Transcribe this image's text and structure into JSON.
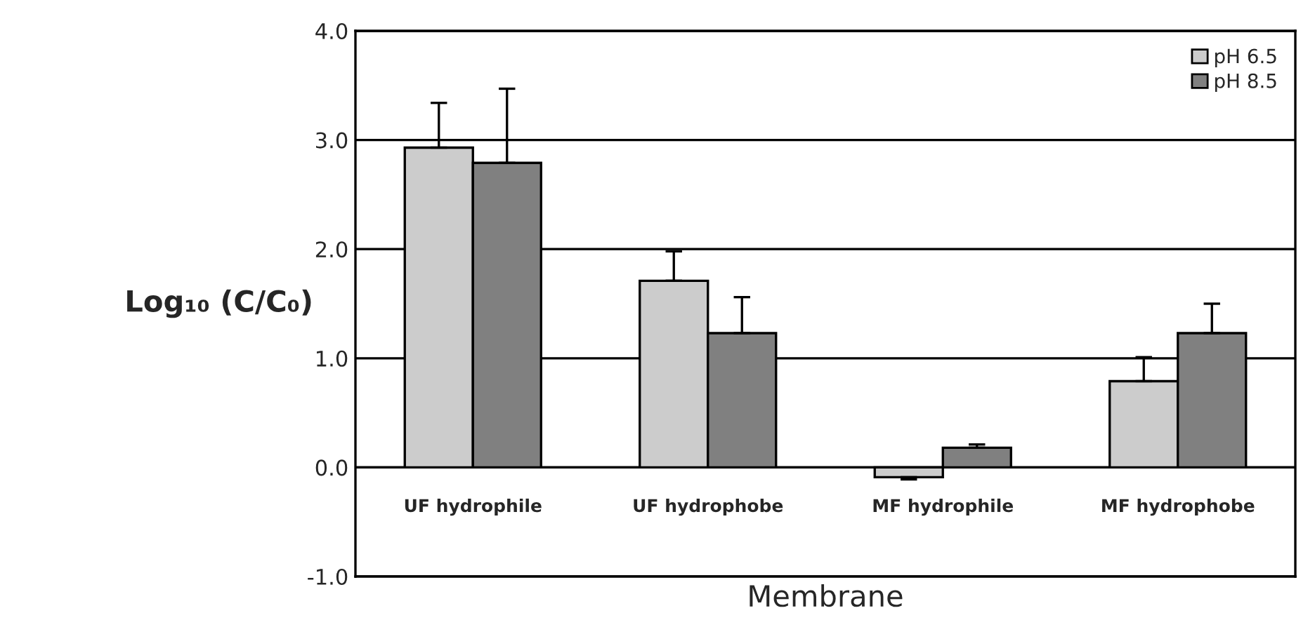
{
  "chart_data": {
    "type": "bar",
    "xlabel": "Membrane",
    "ylabel": "Log₁₀ (C/C₀)",
    "categories": [
      "UF hydrophile",
      "UF hydrophobe",
      "MF hydrophile",
      "MF hydrophobe"
    ],
    "series": [
      {
        "name": "pH 6.5",
        "color": "#cccccc",
        "values": [
          2.93,
          1.71,
          -0.09,
          0.79
        ],
        "errors": [
          [
            2.93,
            3.34
          ],
          [
            1.71,
            1.98
          ],
          [
            -0.11,
            -0.09
          ],
          [
            0.79,
            1.01
          ]
        ]
      },
      {
        "name": "pH 8.5",
        "color": "#808080",
        "values": [
          2.79,
          1.23,
          0.18,
          1.23
        ],
        "errors": [
          [
            2.79,
            3.47
          ],
          [
            1.23,
            1.56
          ],
          [
            0.18,
            0.21
          ],
          [
            1.23,
            1.5
          ]
        ]
      }
    ],
    "ylim": [
      -1,
      4
    ],
    "yticks": [
      {
        "value": -1,
        "label": "-1.0"
      },
      {
        "value": 0,
        "label": "0.0"
      },
      {
        "value": 1,
        "label": "1.0"
      },
      {
        "value": 2,
        "label": "2.0"
      },
      {
        "value": 3,
        "label": "3.0"
      },
      {
        "value": 4,
        "label": "4.0"
      }
    ],
    "grid": "y",
    "legend": "top right"
  }
}
